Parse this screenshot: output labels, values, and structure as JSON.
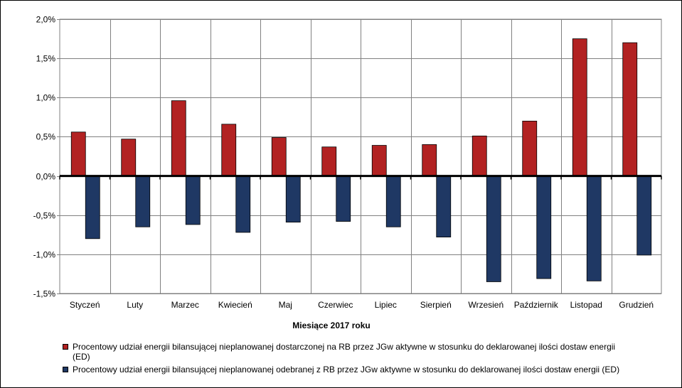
{
  "chart_data": {
    "type": "bar",
    "title": "",
    "xlabel": "Miesiące 2017  roku",
    "ylabel": "",
    "categories": [
      "Styczeń",
      "Luty",
      "Marzec",
      "Kwiecień",
      "Maj",
      "Czerwiec",
      "Lipiec",
      "Sierpień",
      "Wrzesień",
      "Październik",
      "Listopad",
      "Grudzień"
    ],
    "series": [
      {
        "name": "Procentowy udział energii bilansującej nieplanowanej dostarczonej na RB przez JGw aktywne w stosunku do deklarowanej ilości dostaw energii (ED)",
        "color": "#b22222",
        "values": [
          0.56,
          0.47,
          0.96,
          0.66,
          0.49,
          0.37,
          0.39,
          0.4,
          0.51,
          0.7,
          1.75,
          1.7
        ]
      },
      {
        "name": "Procentowy udział energii bilansującej nieplanowanej odebranej z RB przez JGw aktywne w stosunku do deklarowanej ilości dostaw energii (ED)",
        "color": "#1f3864",
        "values": [
          -0.8,
          -0.65,
          -0.62,
          -0.72,
          -0.59,
          -0.58,
          -0.65,
          -0.78,
          -1.35,
          -1.31,
          -1.34,
          -1.01
        ]
      }
    ],
    "ylim": [
      -1.5,
      2.0
    ],
    "yticks": [
      2.0,
      1.5,
      1.0,
      0.5,
      0.0,
      -0.5,
      -1.0,
      -1.5
    ],
    "ytick_labels": [
      "2,0%",
      "1,5%",
      "1,0%",
      "0,5%",
      "0,0%",
      "-0,5%",
      "-1,0%",
      "-1,5%"
    ],
    "grid": true,
    "legend_position": "bottom"
  }
}
